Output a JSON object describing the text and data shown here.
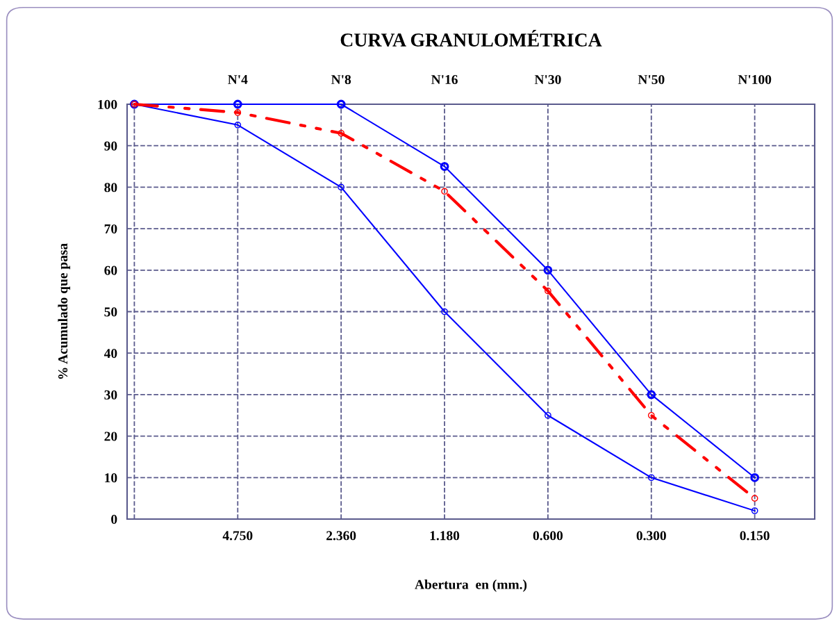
{
  "chart_data": {
    "type": "line",
    "title": "CURVA GRANULOMÉTRICA",
    "xlabel": "Abertura  en (mm.)",
    "ylabel": "% Acumulado que pasa",
    "categories": [
      null,
      "4.750",
      "2.360",
      "1.180",
      "0.600",
      "0.300",
      "0.150"
    ],
    "series": [
      {
        "color": "#0000ff",
        "values": [
          100,
          100,
          100,
          85,
          60,
          30,
          10
        ],
        "line_style": "solid"
      },
      {
        "color": "#0000ff",
        "values": [
          100,
          95,
          80,
          50,
          25,
          10,
          2
        ],
        "line_style": "solid"
      },
      {
        "color": "#ff0000",
        "values": [
          100,
          98,
          93,
          79,
          55,
          25,
          5
        ],
        "line_style": "dashdot"
      }
    ],
    "ylim": [
      0,
      100
    ],
    "yticks": [
      0,
      10,
      20,
      30,
      40,
      50,
      60,
      70,
      80,
      90,
      100
    ],
    "grid": true,
    "marker": "circle",
    "annotations": [
      "N'4",
      "N'8",
      "N'16",
      "N'30",
      "N'50",
      "N'100"
    ]
  }
}
